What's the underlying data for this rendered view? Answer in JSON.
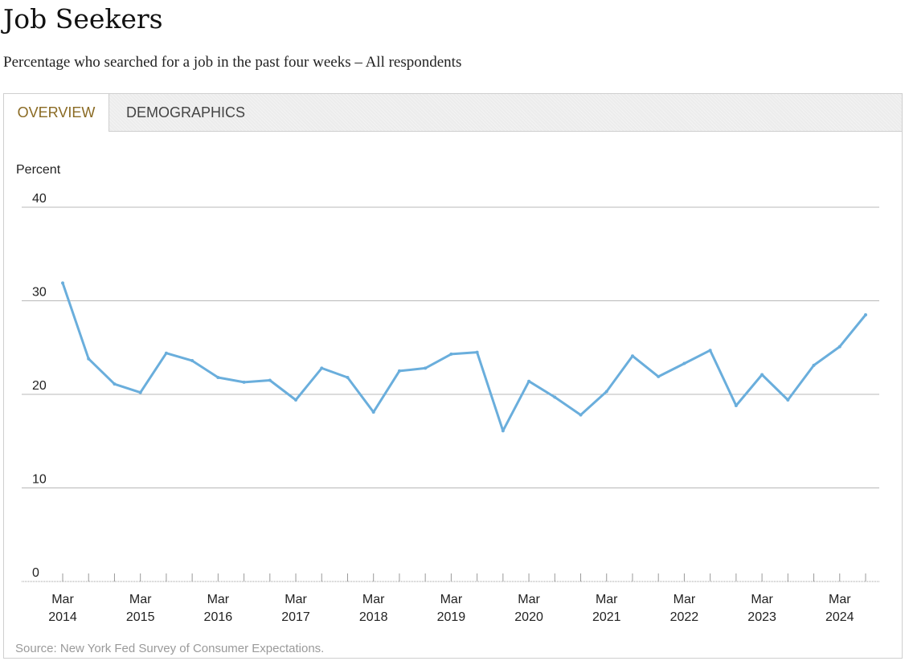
{
  "page": {
    "title": "Job Seekers",
    "subtitle": "Percentage who searched for a job in the past four weeks – All respondents",
    "source": "Source: New York Fed Survey of Consumer Expectations."
  },
  "tabs": [
    {
      "label": "OVERVIEW",
      "active": true
    },
    {
      "label": "DEMOGRAPHICS",
      "active": false
    }
  ],
  "colors": {
    "series": "#6aaedc",
    "active_tab_text": "#8a6a23",
    "gridline": "#b8b8b8",
    "baseline_axis": "#999999"
  },
  "chart_data": {
    "type": "line",
    "ylabel": "Percent",
    "xlabel": "",
    "ylim": [
      0,
      40
    ],
    "y_ticks": [
      0,
      10,
      20,
      30,
      40
    ],
    "grid": true,
    "x_tick_labels": [
      {
        "month": "Mar",
        "year": "2014"
      },
      {
        "month": "Mar",
        "year": "2015"
      },
      {
        "month": "Mar",
        "year": "2016"
      },
      {
        "month": "Mar",
        "year": "2017"
      },
      {
        "month": "Mar",
        "year": "2018"
      },
      {
        "month": "Mar",
        "year": "2019"
      },
      {
        "month": "Mar",
        "year": "2020"
      },
      {
        "month": "Mar",
        "year": "2021"
      },
      {
        "month": "Mar",
        "year": "2022"
      },
      {
        "month": "Mar",
        "year": "2023"
      },
      {
        "month": "Mar",
        "year": "2024"
      }
    ],
    "x": [
      "2014-03",
      "2014-07",
      "2014-11",
      "2015-03",
      "2015-07",
      "2015-11",
      "2016-03",
      "2016-07",
      "2016-11",
      "2017-03",
      "2017-07",
      "2017-11",
      "2018-03",
      "2018-07",
      "2018-11",
      "2019-03",
      "2019-07",
      "2019-11",
      "2020-03",
      "2020-07",
      "2020-11",
      "2021-03",
      "2021-07",
      "2021-11",
      "2022-03",
      "2022-07",
      "2022-11",
      "2023-03",
      "2023-07",
      "2023-11",
      "2024-03",
      "2024-07"
    ],
    "series": [
      {
        "values": [
          31.9,
          23.8,
          21.1,
          20.2,
          24.4,
          23.6,
          21.8,
          21.3,
          21.5,
          19.4,
          22.8,
          21.8,
          18.1,
          22.5,
          22.8,
          24.3,
          24.5,
          16.1,
          21.4,
          19.7,
          17.8,
          20.3,
          24.1,
          21.9,
          23.3,
          24.7,
          18.8,
          22.1,
          19.4,
          23.1,
          25.1,
          28.5
        ]
      }
    ]
  }
}
